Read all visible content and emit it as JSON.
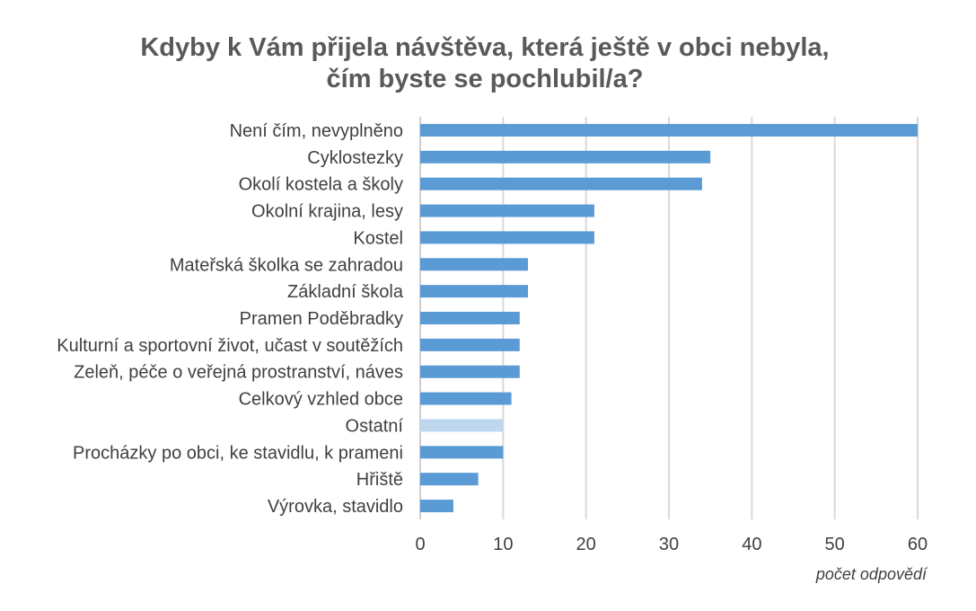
{
  "chart_data": {
    "type": "bar",
    "orientation": "horizontal",
    "title_lines": [
      "Kdyby k Vám přijela návštěva, která ještě v obci nebyla,",
      "čím byste se pochlubil/a?"
    ],
    "xlabel": "počet odpovědí",
    "ylabel": "",
    "xlim": [
      0,
      60
    ],
    "xticks": [
      0,
      10,
      20,
      30,
      40,
      50,
      60
    ],
    "grid": true,
    "legend": "none",
    "categories": [
      "Není čím, nevyplněno",
      "Cyklostezky",
      "Okolí kostela a školy",
      "Okolní krajina, lesy",
      "Kostel",
      "Mateřská školka se zahradou",
      "Základní škola",
      "Pramen Poděbradky",
      "Kulturní a sportovní život, učast v soutěžích",
      "Zeleň, péče o veřejná prostranství, náves",
      "Celkový vzhled obce",
      "Ostatní ",
      "Procházky po obci, ke stavidlu, k prameni",
      "Hřiště",
      "Výrovka, stavidlo"
    ],
    "values": [
      60,
      35,
      34,
      21,
      21,
      13,
      13,
      12,
      12,
      12,
      11,
      10,
      10,
      7,
      4
    ],
    "highlight_category": "Ostatní ",
    "colors": {
      "bar": "#5b9bd5",
      "highlight_bar": "#bdd7ee",
      "title": "#595959",
      "text": "#404040",
      "grid": "#d9d9d9"
    }
  }
}
